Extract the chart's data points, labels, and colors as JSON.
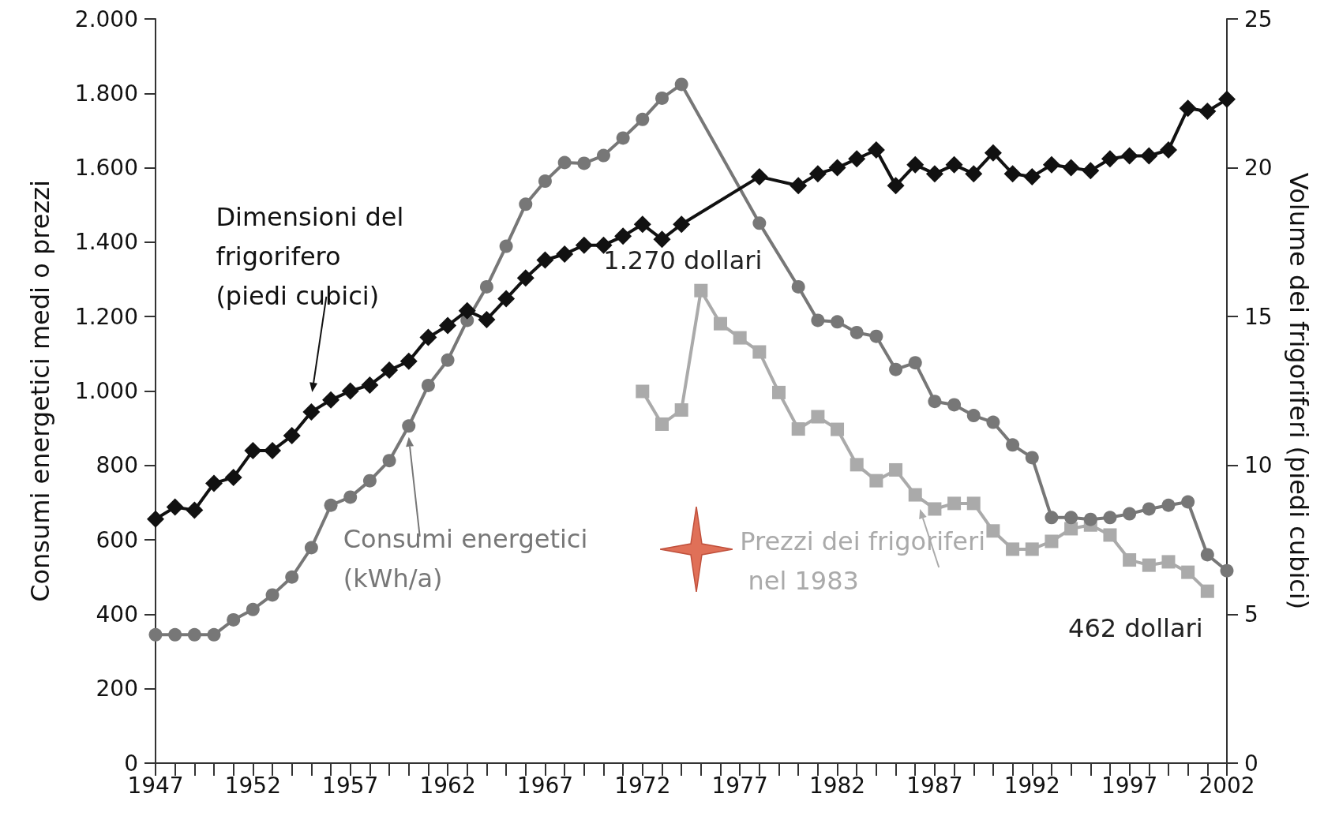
{
  "chart_data": {
    "type": "line",
    "ylabel": "Consumi energetici medi o prezzi",
    "y2label": "Volume dei frigoriferi (piedi cubici)",
    "xlim": [
      1947,
      2002
    ],
    "xticks": [
      1947,
      {
        "value": 1948,
        "label": null
      },
      {
        "value": 1949,
        "label": null
      },
      {
        "value": 1950,
        "label": null
      },
      {
        "value": 1951,
        "label": null
      },
      1952,
      {
        "value": 1953,
        "label": null
      },
      {
        "value": 1954,
        "label": null
      },
      {
        "value": 1955,
        "label": null
      },
      {
        "value": 1956,
        "label": null
      },
      1957,
      {
        "value": 1958,
        "label": null
      },
      {
        "value": 1959,
        "label": null
      },
      {
        "value": 1960,
        "label": null
      },
      {
        "value": 1961,
        "label": null
      },
      1962,
      {
        "value": 1963,
        "label": null
      },
      {
        "value": 1964,
        "label": null
      },
      {
        "value": 1965,
        "label": null
      },
      {
        "value": 1966,
        "label": null
      },
      1967,
      {
        "value": 1968,
        "label": null
      },
      {
        "value": 1969,
        "label": null
      },
      {
        "value": 1970,
        "label": null
      },
      {
        "value": 1971,
        "label": null
      },
      1972,
      {
        "value": 1973,
        "label": null
      },
      {
        "value": 1974,
        "label": null
      },
      {
        "value": 1975,
        "label": null
      },
      {
        "value": 1976,
        "label": null
      },
      1977,
      {
        "value": 1978,
        "label": null
      },
      {
        "value": 1979,
        "label": null
      },
      {
        "value": 1980,
        "label": null
      },
      {
        "value": 1981,
        "label": null
      },
      1982,
      {
        "value": 1983,
        "label": null
      },
      {
        "value": 1984,
        "label": null
      },
      {
        "value": 1985,
        "label": null
      },
      {
        "value": 1986,
        "label": null
      },
      1987,
      {
        "value": 1988,
        "label": null
      },
      {
        "value": 1989,
        "label": null
      },
      {
        "value": 1990,
        "label": null
      },
      {
        "value": 1991,
        "label": null
      },
      1992,
      {
        "value": 1993,
        "label": null
      },
      {
        "value": 1994,
        "label": null
      },
      {
        "value": 1995,
        "label": null
      },
      {
        "value": 1996,
        "label": null
      },
      1997,
      {
        "value": 1998,
        "label": null
      },
      {
        "value": 1999,
        "label": null
      },
      {
        "value": 2000,
        "label": null
      },
      {
        "value": 2001,
        "label": null
      },
      2002
    ],
    "ylim": [
      0,
      2000
    ],
    "yticks": [
      0,
      200,
      400,
      600,
      800,
      {
        "value": 1000,
        "label": "1.000"
      },
      {
        "value": 1200,
        "label": "1.200"
      },
      {
        "value": 1400,
        "label": "1.400"
      },
      {
        "value": 1600,
        "label": "1.600"
      },
      {
        "value": 1800,
        "label": "1.800"
      },
      {
        "value": 2000,
        "label": "2.000"
      }
    ],
    "y2lim": [
      0,
      25
    ],
    "y2ticks": [
      0,
      5,
      10,
      15,
      20,
      25
    ],
    "grid": false,
    "line_style": "solid",
    "series": [
      {
        "name": "Dimensioni del frigorifero (piedi cubici)",
        "color": "#111111",
        "marker": "diamond",
        "axis": "y2",
        "x": [
          1947,
          1948,
          1949,
          1950,
          1951,
          1952,
          1953,
          1954,
          1955,
          1956,
          1957,
          1958,
          1959,
          1960,
          1961,
          1962,
          1963,
          1964,
          1965,
          1966,
          1967,
          1968,
          1969,
          1970,
          1971,
          1972,
          1973,
          1974,
          1978,
          1980,
          1981,
          1982,
          1983,
          1984,
          1985,
          1986,
          1987,
          1988,
          1989,
          1990,
          1991,
          1992,
          1993,
          1994,
          1995,
          1996,
          1997,
          1998,
          1999,
          2000,
          2001,
          2002
        ],
        "values": [
          8.2,
          8.6,
          8.5,
          9.4,
          9.6,
          10.5,
          10.5,
          11.0,
          11.8,
          12.2,
          12.5,
          12.7,
          13.2,
          13.5,
          14.3,
          14.7,
          15.2,
          14.9,
          15.6,
          16.3,
          16.9,
          17.1,
          17.4,
          17.4,
          17.7,
          18.1,
          17.6,
          18.1,
          19.7,
          19.4,
          19.8,
          20.0,
          20.3,
          20.6,
          19.4,
          20.1,
          19.8,
          20.1,
          19.8,
          20.5,
          19.8,
          19.7,
          20.1,
          20.0,
          19.9,
          20.3,
          20.4,
          20.4,
          20.6,
          22.0,
          21.9,
          22.3
        ]
      },
      {
        "name": "Consumi energetici (kWh/a)",
        "color": "#777777",
        "marker": "circle",
        "x": [
          1947,
          1948,
          1949,
          1950,
          1951,
          1952,
          1953,
          1954,
          1955,
          1956,
          1957,
          1958,
          1959,
          1960,
          1961,
          1962,
          1963,
          1964,
          1965,
          1966,
          1967,
          1968,
          1969,
          1970,
          1971,
          1972,
          1973,
          1974,
          1978,
          1980,
          1981,
          1982,
          1983,
          1984,
          1985,
          1986,
          1987,
          1988,
          1989,
          1990,
          1991,
          1992,
          1993,
          1994,
          1995,
          1996,
          1997,
          1998,
          1999,
          2000,
          2001,
          2002
        ],
        "values": [
          345,
          345,
          345,
          345,
          385,
          413,
          452,
          500,
          579,
          693,
          715,
          759,
          813,
          906,
          1015,
          1083,
          1190,
          1280,
          1389,
          1502,
          1564,
          1614,
          1612,
          1633,
          1680,
          1730,
          1787,
          1824,
          1451,
          1280,
          1190,
          1186,
          1157,
          1147,
          1058,
          1076,
          972,
          963,
          934,
          916,
          855,
          821,
          660,
          660,
          655,
          660,
          670,
          683,
          693,
          702,
          560,
          517
        ]
      },
      {
        "name": "Prezzi dei frigoriferi nel 1983",
        "color": "#aaaaaa",
        "marker": "square",
        "x": [
          1972,
          1973,
          1974,
          1975,
          1976,
          1977,
          1978,
          1979,
          1980,
          1981,
          1982,
          1983,
          1984,
          1985,
          1986,
          1987,
          1988,
          1989,
          1990,
          1991,
          1992,
          1993,
          1994,
          1995,
          1996,
          1997,
          1998,
          1999,
          2000,
          2001
        ],
        "values": [
          999,
          911,
          949,
          1270,
          1181,
          1143,
          1105,
          996,
          898,
          931,
          897,
          802,
          759,
          788,
          721,
          683,
          698,
          698,
          624,
          575,
          575,
          596,
          630,
          640,
          613,
          546,
          532,
          541,
          513,
          462
        ]
      }
    ],
    "annotations": [
      {
        "text": "1.270 dollari",
        "x": 1975,
        "y": 1270
      },
      {
        "text": "462 dollari",
        "x": 2001,
        "y": 462
      }
    ]
  }
}
